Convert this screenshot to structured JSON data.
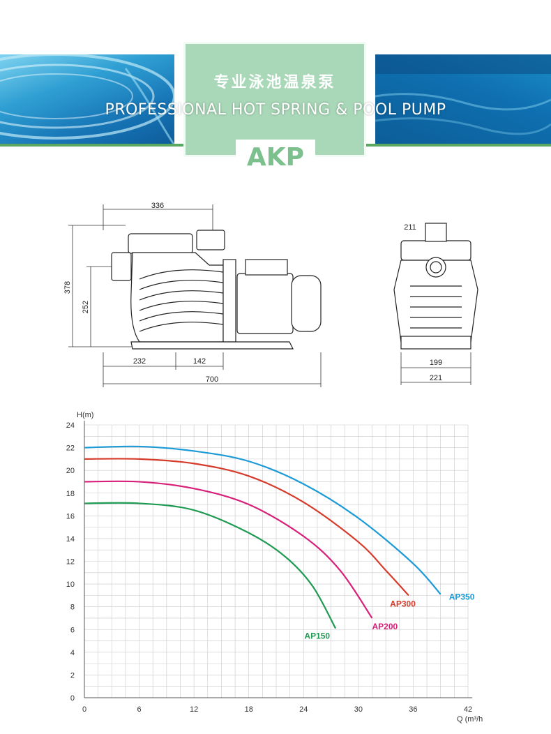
{
  "banner": {
    "title_cn": "专业泳池温泉泵",
    "title_en": "PROFESSIONAL HOT SPRING & POOL PUMP",
    "brand": "AKP"
  },
  "drawing": {
    "side_dims": [
      "336",
      "378",
      "252",
      "232",
      "142",
      "700"
    ],
    "front_dims": [
      "211",
      "199",
      "221"
    ]
  },
  "chart_data": {
    "type": "line",
    "xlabel": "Q (m³/h",
    "ylabel": "H(m)",
    "xlim": [
      0,
      42
    ],
    "ylim": [
      0,
      24
    ],
    "x_ticks": [
      0,
      6,
      12,
      18,
      24,
      30,
      36,
      42
    ],
    "y_ticks": [
      0,
      2,
      4,
      6,
      8,
      10,
      12,
      14,
      16,
      18,
      20,
      22,
      24
    ],
    "grid": true,
    "series": [
      {
        "name": "AP350",
        "color": "#1a9ad6",
        "x": [
          0,
          6,
          12,
          18,
          24,
          30,
          36,
          39
        ],
        "y": [
          22,
          22.1,
          21.7,
          20.8,
          18.8,
          15.8,
          11.8,
          9.1
        ]
      },
      {
        "name": "AP300",
        "color": "#d63a2a",
        "x": [
          0,
          6,
          12,
          18,
          24,
          30,
          33,
          35.5
        ],
        "y": [
          21,
          21,
          20.6,
          19.5,
          17.2,
          13.7,
          11.2,
          9.0
        ]
      },
      {
        "name": "AP200",
        "color": "#d81f7a",
        "x": [
          0,
          6,
          12,
          18,
          24,
          28,
          31.5
        ],
        "y": [
          19,
          19,
          18.4,
          17.0,
          14.2,
          11.2,
          7.0
        ]
      },
      {
        "name": "AP150",
        "color": "#1f9a52",
        "x": [
          0,
          6,
          12,
          18,
          22,
          25,
          27.5
        ],
        "y": [
          17.1,
          17.1,
          16.5,
          14.5,
          12.4,
          9.8,
          6.1
        ]
      }
    ]
  }
}
